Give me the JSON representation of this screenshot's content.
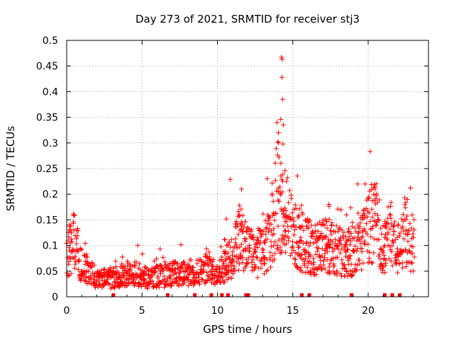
{
  "chart_data": {
    "type": "scatter",
    "title": "Day 273 of 2021, SRMTID for receiver stj3",
    "xlabel": "GPS time / hours",
    "ylabel": "SRMTID / TECUs",
    "xlim": [
      0,
      24
    ],
    "ylim": [
      0,
      0.5
    ],
    "grid": true,
    "marker": "+",
    "marker_color": "#ff0000",
    "x_ticks": [
      {
        "value": 0,
        "label": "0"
      },
      {
        "value": 5,
        "label": "5"
      },
      {
        "value": 10,
        "label": "10"
      },
      {
        "value": 15,
        "label": "15"
      },
      {
        "value": 20,
        "label": "20"
      }
    ],
    "y_ticks": [
      {
        "value": 0,
        "label": "0"
      },
      {
        "value": 0.05,
        "label": "0.05"
      },
      {
        "value": 0.1,
        "label": "0.1"
      },
      {
        "value": 0.15,
        "label": "0.15"
      },
      {
        "value": 0.2,
        "label": "0.2"
      },
      {
        "value": 0.25,
        "label": "0.25"
      },
      {
        "value": 0.3,
        "label": "0.3"
      },
      {
        "value": 0.35,
        "label": "0.35"
      },
      {
        "value": 0.4,
        "label": "0.4"
      },
      {
        "value": 0.45,
        "label": "0.45"
      },
      {
        "value": 0.5,
        "label": "0.5"
      }
    ],
    "series_envelope_hours": [
      0,
      0.5,
      1,
      1.5,
      2,
      2.5,
      3,
      3.5,
      4,
      4.5,
      5,
      5.5,
      6,
      6.5,
      7,
      7.5,
      8,
      8.5,
      9,
      9.5,
      10,
      10.5,
      11,
      11.5,
      12,
      12.5,
      13,
      13.5,
      14,
      14.5,
      15,
      15.5,
      16,
      16.5,
      17,
      17.5,
      18,
      18.5,
      19,
      19.5,
      20,
      20.5,
      21,
      21.5,
      22,
      22.5,
      23
    ],
    "series_envelope_srmtid": [
      0.08,
      0.11,
      0.06,
      0.05,
      0.035,
      0.035,
      0.035,
      0.04,
      0.045,
      0.045,
      0.04,
      0.035,
      0.04,
      0.04,
      0.045,
      0.045,
      0.045,
      0.05,
      0.055,
      0.06,
      0.04,
      0.06,
      0.08,
      0.12,
      0.09,
      0.08,
      0.09,
      0.11,
      0.2,
      0.16,
      0.13,
      0.11,
      0.1,
      0.09,
      0.1,
      0.1,
      0.09,
      0.08,
      0.09,
      0.1,
      0.14,
      0.15,
      0.1,
      0.12,
      0.09,
      0.13,
      0.1
    ],
    "peak_points": [
      {
        "x": 14.25,
        "y": 0.467
      },
      {
        "x": 14.3,
        "y": 0.463
      },
      {
        "x": 14.28,
        "y": 0.428
      },
      {
        "x": 14.32,
        "y": 0.385
      },
      {
        "x": 14.2,
        "y": 0.346
      },
      {
        "x": 13.95,
        "y": 0.34
      },
      {
        "x": 14.05,
        "y": 0.32
      },
      {
        "x": 14.35,
        "y": 0.298
      },
      {
        "x": 13.9,
        "y": 0.289
      },
      {
        "x": 10.85,
        "y": 0.229
      },
      {
        "x": 19.8,
        "y": 0.22
      },
      {
        "x": 11.6,
        "y": 0.21
      },
      {
        "x": 22.6,
        "y": 0.19
      }
    ],
    "zero_markers_hours": [
      3.1,
      6.7,
      8.5,
      9.6,
      10.3,
      10.7,
      11.9,
      12.05,
      15.6,
      16.1,
      18.9,
      21.1,
      21.6,
      22.1
    ]
  }
}
